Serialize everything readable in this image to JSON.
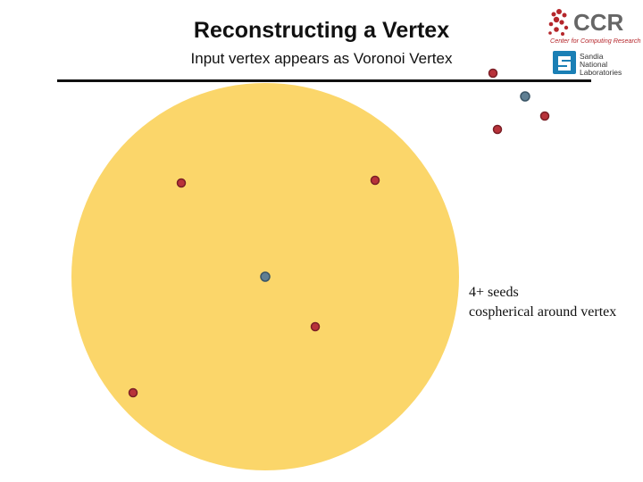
{
  "slide": {
    "title": "Reconstructing a Vertex",
    "subtitle": "Input vertex appears as Voronoi Vertex"
  },
  "annotation": {
    "line1": "4+ seeds",
    "line2": "cospherical around vertex"
  },
  "logos": {
    "ccr": {
      "wordmark": "CCR",
      "tagline": "Center for Computing Research"
    },
    "sandia": {
      "lines": [
        "Sandia",
        "National",
        "Laboratories"
      ]
    }
  },
  "colors": {
    "sphere_fill": "#fbd66a",
    "seed_fill": "#b8323a",
    "seed_stroke": "#7a1f26",
    "vertex_fill": "#5f7f93",
    "vertex_stroke": "#3a5566",
    "ccr_red": "#b5262b",
    "ccr_grey": "#666666",
    "sandia_blue": "#1a7fb5"
  }
}
